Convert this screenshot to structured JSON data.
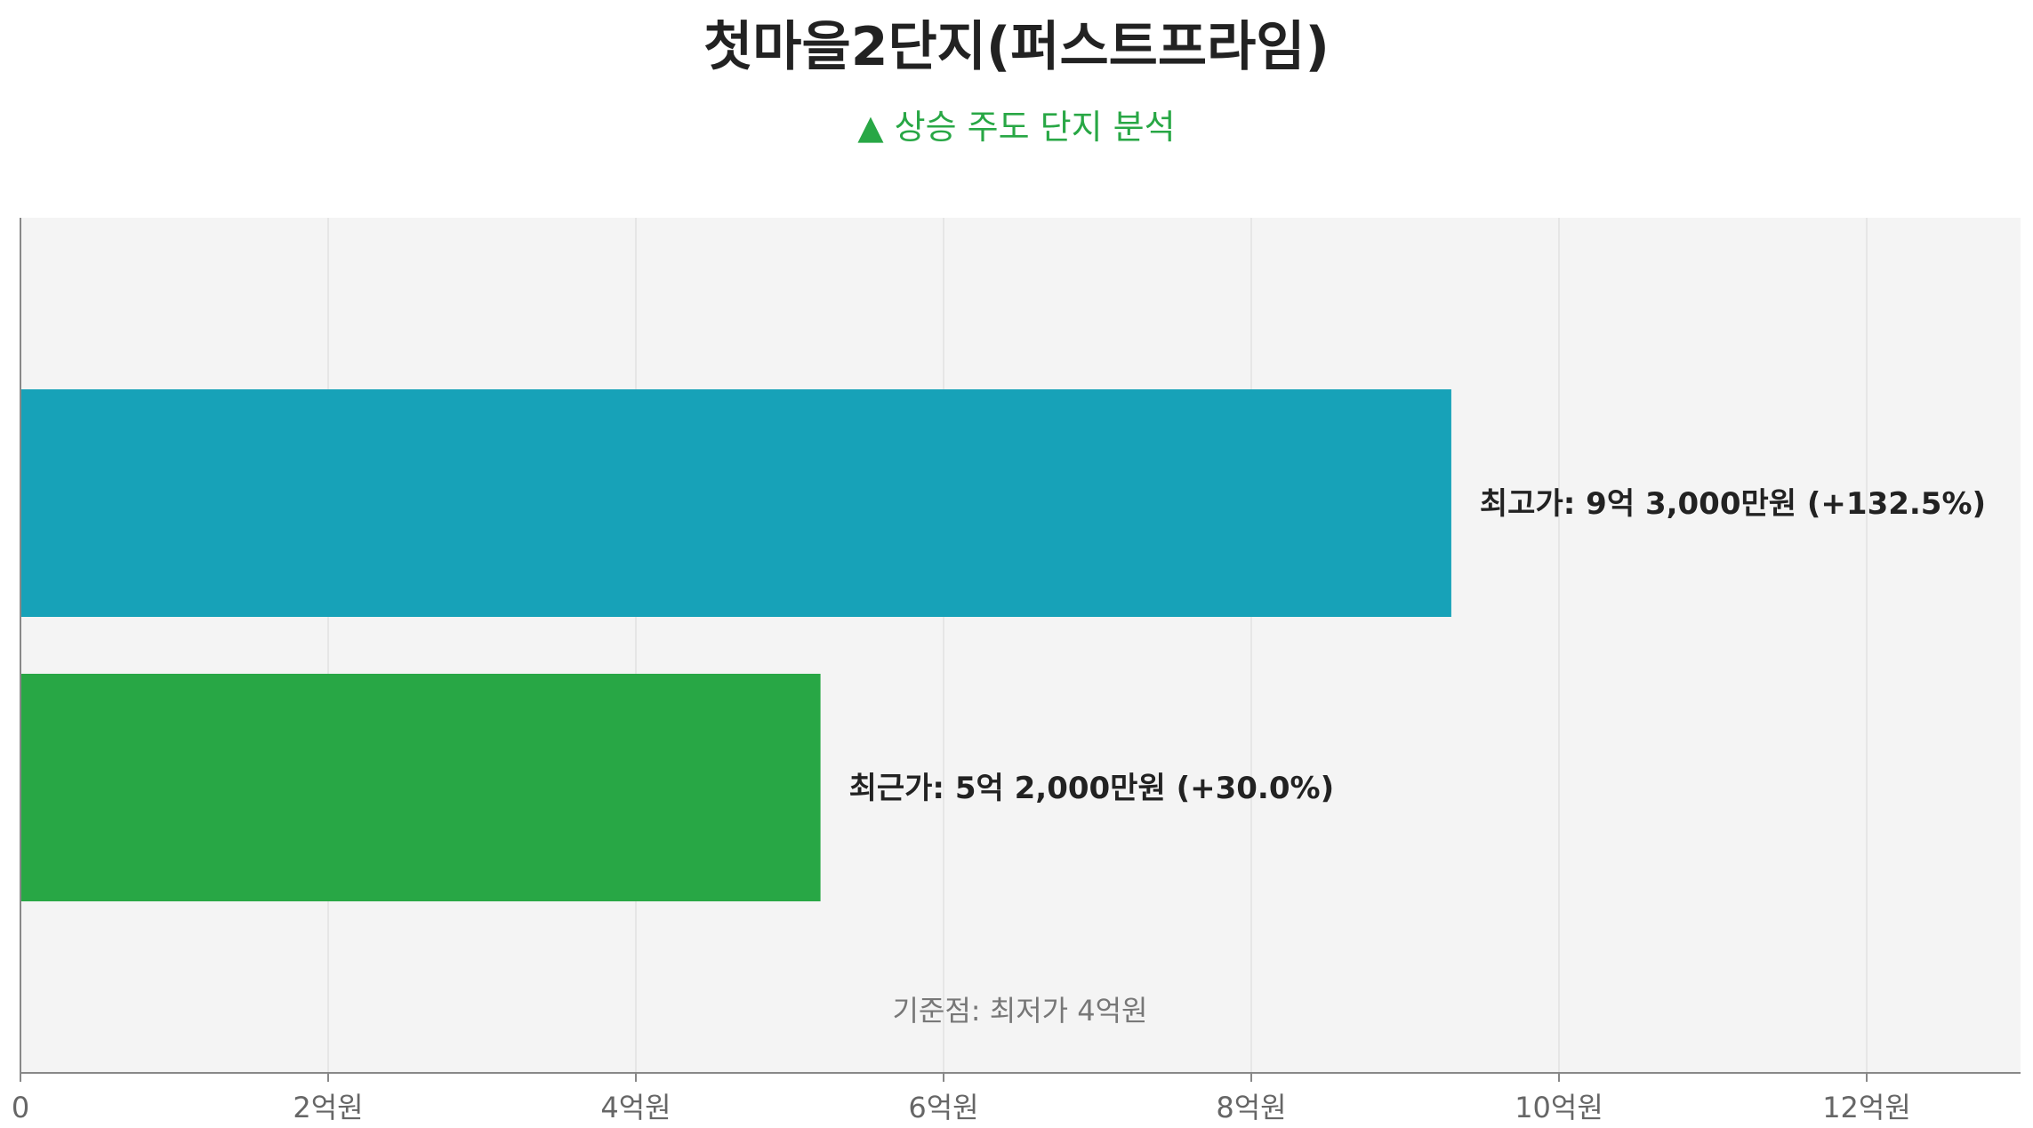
{
  "title": "첫마을2단지(퍼스트프라임)",
  "subtitle": "▲ 상승 주도 단지 분석",
  "colors": {
    "plot_background": "#f4f4f4",
    "grid": "#e2e2e2",
    "axis": "#888888",
    "tick_text": "#666666",
    "label_text": "#222222",
    "baseline_text": "#777777"
  },
  "chart_data": {
    "type": "bar",
    "orientation": "horizontal",
    "unit": "억원",
    "xlim": [
      0,
      13
    ],
    "xticks": [
      0,
      2,
      4,
      6,
      8,
      10,
      12
    ],
    "xtick_labels": [
      "0",
      "2억원",
      "4억원",
      "6억원",
      "8억원",
      "10억원",
      "12억원"
    ],
    "grid": true,
    "bars": [
      {
        "value": 9.3,
        "label": "최고가: 9억 3,000만원 (+132.5%)",
        "color": "#17a2b8"
      },
      {
        "value": 5.2,
        "label": "최근가: 5억 2,000만원 (+30.0%)",
        "color": "#28a745"
      }
    ],
    "annotation": "기준점: 최저가 4억원"
  }
}
